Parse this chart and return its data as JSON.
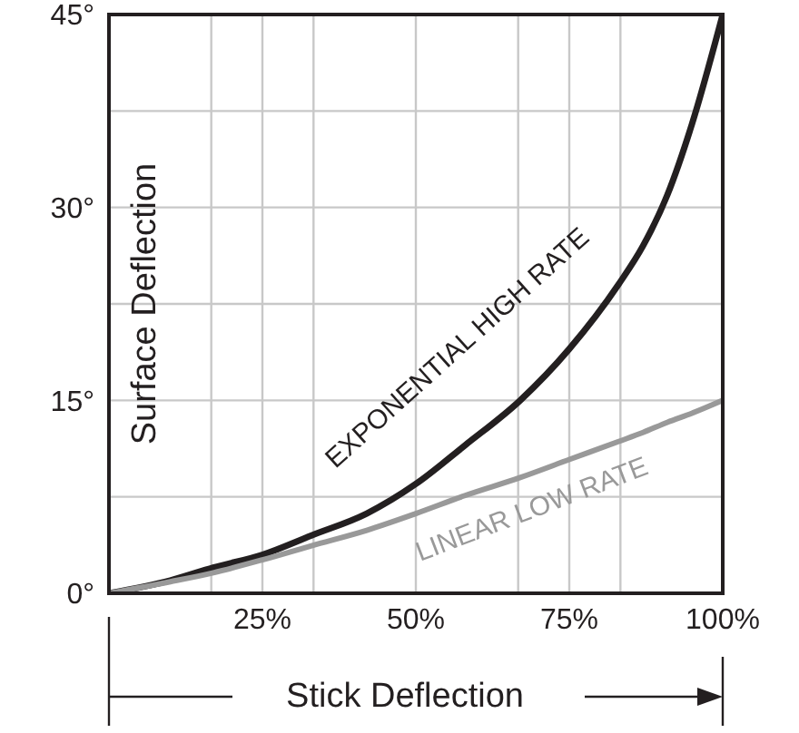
{
  "chart_data": {
    "type": "line",
    "xlabel": "Stick Deflection",
    "ylabel": "Surface Deflection",
    "x": [
      0,
      10,
      17,
      25,
      33,
      42,
      50,
      58,
      67,
      75,
      83,
      87,
      91,
      95,
      100
    ],
    "series": [
      {
        "name": "EXPONENTIAL HIGH RATE",
        "color": "#231f20",
        "values": [
          0,
          1,
          2,
          3,
          4.5,
          6.2,
          8.5,
          11.5,
          15,
          19,
          24,
          27,
          31,
          36.5,
          45
        ]
      },
      {
        "name": "LINEAR LOW RATE",
        "color": "#999999",
        "values": [
          0,
          0.9,
          1.6,
          2.6,
          3.7,
          4.9,
          6.2,
          7.6,
          9,
          10.4,
          11.8,
          12.5,
          13.3,
          14,
          15
        ]
      }
    ],
    "xlim": [
      0,
      100
    ],
    "ylim": [
      0,
      45
    ],
    "xticks": [
      {
        "value": 16.67,
        "label": null
      },
      {
        "value": 25,
        "label": "25%"
      },
      {
        "value": 33.33,
        "label": null
      },
      {
        "value": 50,
        "label": "50%"
      },
      {
        "value": 66.67,
        "label": null
      },
      {
        "value": 75,
        "label": "75%"
      },
      {
        "value": 83.33,
        "label": null
      },
      {
        "value": 100,
        "label": "100%"
      }
    ],
    "yticks": [
      {
        "value": 0,
        "label": "0°"
      },
      {
        "value": 7.5,
        "label": null
      },
      {
        "value": 15,
        "label": "15°"
      },
      {
        "value": 22.5,
        "label": null
      },
      {
        "value": 30,
        "label": "30°"
      },
      {
        "value": 37.5,
        "label": null
      },
      {
        "value": 45,
        "label": "45°"
      }
    ],
    "grid": true,
    "line_style": "solid",
    "marker": "none"
  }
}
